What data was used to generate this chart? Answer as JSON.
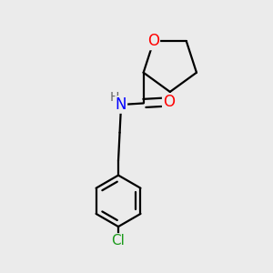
{
  "background_color": "#ebebeb",
  "bond_color": "#000000",
  "bond_width": 1.6,
  "atom_colors": {
    "O": "#ff0000",
    "N": "#0000ff",
    "Cl": "#1a9a1a",
    "H": "#666666",
    "C": "#000000"
  },
  "font_size": 11,
  "fig_size": [
    3.0,
    3.0
  ],
  "dpi": 100
}
